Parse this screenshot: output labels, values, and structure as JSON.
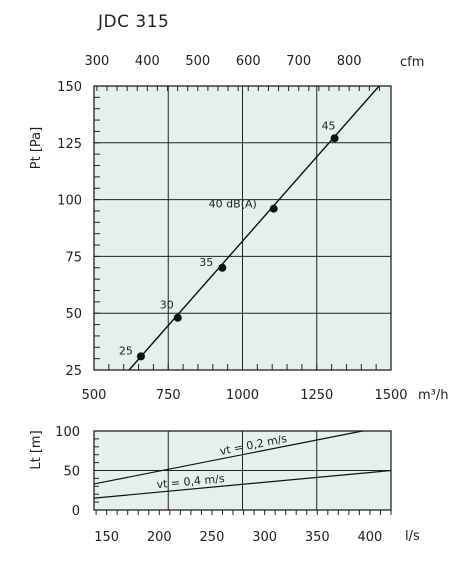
{
  "title": "JDC 315",
  "chart_data": [
    {
      "type": "line",
      "name": "pressure",
      "plot_bg": "#e3f0ee",
      "x": {
        "label": "m³/h",
        "min": 500,
        "max": 1500,
        "ticks": [
          500,
          750,
          1000,
          1250,
          1500
        ],
        "tick_labels": [
          "500",
          "750",
          "1000",
          "1250",
          "1500"
        ]
      },
      "x_top": {
        "label": "cfm",
        "ticks": [
          300,
          400,
          500,
          600,
          700,
          800
        ],
        "tick_labels": [
          "300",
          "400",
          "500",
          "600",
          "700",
          "800"
        ],
        "factor": 1.699
      },
      "y": {
        "label": "Pt [Pa]",
        "min": 25,
        "max": 150,
        "ticks": [
          25,
          50,
          75,
          100,
          125,
          150
        ],
        "tick_labels": [
          "25",
          "50",
          "75",
          "100",
          "125",
          "150"
        ]
      },
      "line": [
        [
          618,
          25
        ],
        [
          1460,
          150
        ]
      ],
      "points": [
        {
          "x": 658,
          "y": 31,
          "label": "25"
        },
        {
          "x": 782,
          "y": 48,
          "label": "30"
        },
        {
          "x": 932,
          "y": 70,
          "label": "35"
        },
        {
          "x": 1105,
          "y": 96,
          "label": "40 dB(A)"
        },
        {
          "x": 1310,
          "y": 127,
          "label": "45"
        }
      ]
    },
    {
      "type": "line",
      "name": "throw",
      "plot_bg": "#e3f0ee",
      "x": {
        "label": "l/s",
        "min": 138,
        "max": 420,
        "ticks": [
          150,
          200,
          250,
          300,
          350,
          400
        ],
        "tick_labels": [
          "150",
          "200",
          "250",
          "300",
          "350",
          "400"
        ]
      },
      "y": {
        "label": "Lt [m]",
        "min": 0,
        "max": 100,
        "ticks": [
          0,
          50,
          100
        ],
        "tick_labels": [
          "0",
          "50",
          "100"
        ]
      },
      "series": [
        {
          "name": "vt = 0,2 m/s",
          "points": [
            [
              138,
              33
            ],
            [
              393,
              100
            ]
          ]
        },
        {
          "name": "vt = 0,4 m/s",
          "points": [
            [
              138,
              15
            ],
            [
              420,
              50
            ]
          ]
        }
      ]
    }
  ]
}
